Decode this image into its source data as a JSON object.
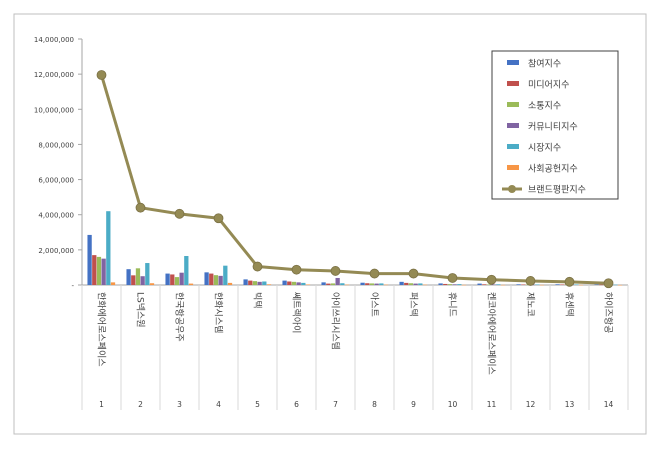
{
  "chart_data": {
    "type": "bar",
    "combo": "bar+line",
    "title": "",
    "xlabel": "",
    "ylabel": "",
    "ylim": [
      0,
      14000000
    ],
    "yticks": [
      0,
      2000000,
      4000000,
      6000000,
      8000000,
      10000000,
      12000000,
      14000000
    ],
    "ytick_labels": [
      "-",
      "2,000,000",
      "4,000,000",
      "6,000,000",
      "8,000,000",
      "10,000,000",
      "12,000,000",
      "14,000,000"
    ],
    "grid": false,
    "legend_position": "top-right",
    "categories": [
      "1",
      "2",
      "3",
      "4",
      "5",
      "6",
      "7",
      "8",
      "9",
      "10",
      "11",
      "12",
      "13",
      "14"
    ],
    "category_names": [
      "한화에어로스페이스",
      "LS넥스원",
      "한국항공우주",
      "한화시스템",
      "빅텍",
      "쎄트렉아이",
      "아이쓰리시스템",
      "아스트",
      "퍼스텍",
      "휴니드",
      "켄코아에어로스페이스",
      "제노코",
      "휴센텍",
      "하이즈항공"
    ],
    "series": [
      {
        "name": "참여지수",
        "kind": "bar",
        "color": "#4472C4",
        "values": [
          2850000,
          900000,
          650000,
          720000,
          320000,
          250000,
          150000,
          130000,
          180000,
          90000,
          80000,
          40000,
          40000,
          30000
        ]
      },
      {
        "name": "미디어지수",
        "kind": "bar",
        "color": "#C0504D",
        "values": [
          1700000,
          550000,
          600000,
          650000,
          250000,
          200000,
          80000,
          100000,
          120000,
          60000,
          40000,
          30000,
          30000,
          20000
        ]
      },
      {
        "name": "소통지수",
        "kind": "bar",
        "color": "#9BBB59",
        "values": [
          1600000,
          950000,
          450000,
          560000,
          220000,
          180000,
          90000,
          90000,
          100000,
          50000,
          30000,
          25000,
          25000,
          15000
        ]
      },
      {
        "name": "커뮤니티지수",
        "kind": "bar",
        "color": "#8064A2",
        "values": [
          1500000,
          500000,
          700000,
          520000,
          180000,
          150000,
          400000,
          80000,
          80000,
          40000,
          30000,
          20000,
          20000,
          10000
        ]
      },
      {
        "name": "시장지수",
        "kind": "bar",
        "color": "#4BACC6",
        "values": [
          4200000,
          1250000,
          1650000,
          1100000,
          200000,
          120000,
          100000,
          90000,
          90000,
          50000,
          40000,
          30000,
          30000,
          20000
        ]
      },
      {
        "name": "사회공헌지수",
        "kind": "bar",
        "color": "#F79646",
        "values": [
          150000,
          100000,
          80000,
          120000,
          40000,
          30000,
          20000,
          20000,
          20000,
          10000,
          10000,
          10000,
          10000,
          5000
        ]
      },
      {
        "name": "브랜드평판지수",
        "kind": "line",
        "color": "#948A54",
        "values": [
          11950000,
          4400000,
          4050000,
          3800000,
          1050000,
          870000,
          800000,
          650000,
          650000,
          400000,
          300000,
          230000,
          180000,
          100000
        ]
      }
    ]
  }
}
